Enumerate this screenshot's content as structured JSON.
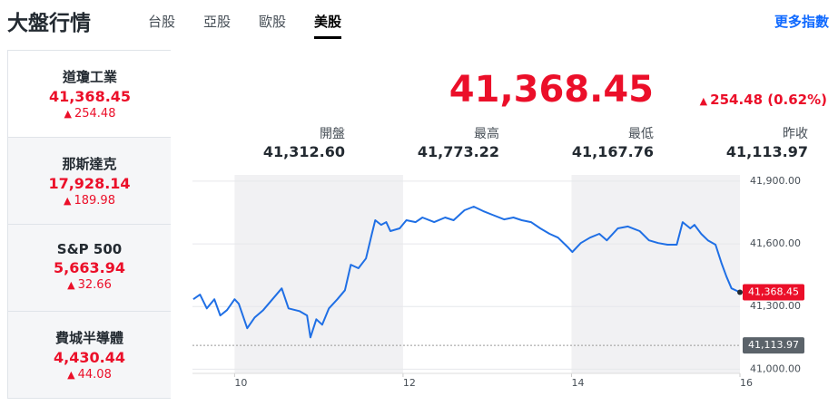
{
  "header": {
    "title": "大盤行情",
    "tabs": [
      "台股",
      "亞股",
      "歐股",
      "美股"
    ],
    "more_link": "更多指數"
  },
  "indices": [
    {
      "name": "道瓊工業",
      "value": "41,368.45",
      "change": "254.48"
    },
    {
      "name": "那斯達克",
      "value": "17,928.14",
      "change": "189.98"
    },
    {
      "name": "S&P 500",
      "value": "5,663.94",
      "change": "32.66"
    },
    {
      "name": "費城半導體",
      "value": "4,430.44",
      "change": "44.08"
    }
  ],
  "quote": {
    "price": "41,368.45",
    "change": "254.48 (0.62%)",
    "stats": [
      {
        "label": "開盤",
        "value": "41,312.60"
      },
      {
        "label": "最高",
        "value": "41,773.22"
      },
      {
        "label": "最低",
        "value": "41,167.76"
      },
      {
        "label": "昨收",
        "value": "41,113.97"
      }
    ]
  },
  "chart": {
    "type": "line",
    "color": "#1f6fe5",
    "x": [
      9.51,
      9.59,
      9.67,
      9.76,
      9.83,
      9.91,
      10.0,
      10.05,
      10.15,
      10.24,
      10.34,
      10.45,
      10.56,
      10.64,
      10.77,
      10.86,
      10.9,
      10.97,
      11.04,
      11.12,
      11.22,
      11.31,
      11.38,
      11.47,
      11.56,
      11.63,
      11.67,
      11.74,
      11.8,
      11.85,
      11.96,
      12.04,
      12.15,
      12.23,
      12.37,
      12.5,
      12.6,
      12.73,
      12.84,
      12.95,
      13.06,
      13.2,
      13.31,
      13.41,
      13.52,
      13.63,
      13.74,
      13.84,
      13.95,
      14.01,
      14.11,
      14.22,
      14.33,
      14.42,
      14.55,
      14.67,
      14.81,
      14.92,
      15.03,
      15.14,
      15.25,
      15.32,
      15.41,
      15.46,
      15.54,
      15.62,
      15.71,
      15.78,
      15.84,
      15.9,
      16.0
    ],
    "values": [
      41335,
      41357,
      41291,
      41335,
      41257,
      41283,
      41335,
      41313,
      41196,
      41248,
      41283,
      41335,
      41387,
      41291,
      41278,
      41257,
      41152,
      41239,
      41213,
      41291,
      41335,
      41378,
      41500,
      41483,
      41530,
      41648,
      41713,
      41691,
      41704,
      41661,
      41674,
      41713,
      41704,
      41726,
      41704,
      41726,
      41713,
      41761,
      41778,
      41757,
      41739,
      41717,
      41726,
      41713,
      41704,
      41674,
      41648,
      41630,
      41587,
      41561,
      41604,
      41630,
      41648,
      41617,
      41674,
      41683,
      41661,
      41617,
      41604,
      41596,
      41596,
      41704,
      41674,
      41691,
      41648,
      41617,
      41596,
      41509,
      41443,
      41387,
      41368.45
    ],
    "xlim": [
      9.5,
      16
    ],
    "xticks": [
      10,
      12,
      14,
      16
    ],
    "ylim": [
      40980,
      41930
    ],
    "yticks": [
      {
        "value": 41000,
        "label": "41,000.00"
      },
      {
        "value": 41300,
        "label": "41,300.00"
      },
      {
        "value": 41600,
        "label": "41,600.00"
      },
      {
        "value": 41900,
        "label": "41,900.00"
      }
    ],
    "grid": true,
    "last_price": {
      "value": 41368.45,
      "label": "41,368.45"
    },
    "prev_close": {
      "value": 41113.97,
      "label": "41,113.97"
    }
  }
}
